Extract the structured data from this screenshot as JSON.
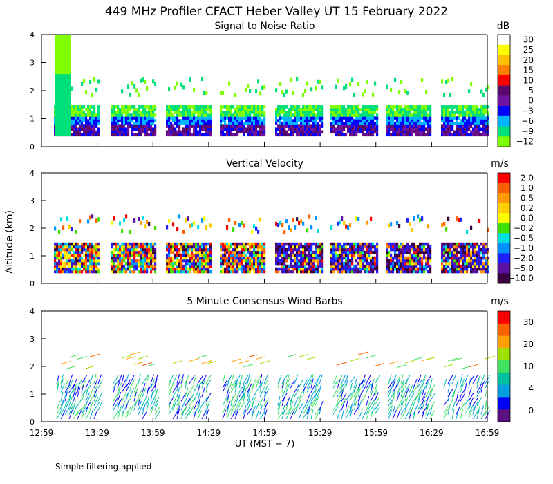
{
  "title": "449 MHz Profiler CFACT Heber Valley UT 15 February 2022",
  "ylabel": "Altitude (km)",
  "xlabel": "UT  (MST − 7)",
  "footer": "Simple filtering applied",
  "chart_data": [
    {
      "type": "heatmap",
      "title": "Signal to Noise Ratio",
      "unit": "dB",
      "yticks": [
        "0",
        "1",
        "2",
        "3",
        "4"
      ],
      "ylim": [
        0,
        4
      ],
      "colorbar_labels": [
        "30",
        "25",
        "20",
        "15",
        "10",
        "5",
        "0",
        "−3",
        "−6",
        "−9",
        "−12"
      ],
      "colorbar_colors": [
        "#ffffff",
        "#ffff00",
        "#ffc000",
        "#ff8000",
        "#ff0000",
        "#5a0a6e",
        "#6e14a0",
        "#0000ff",
        "#00b4ff",
        "#00e07a",
        "#80ff00"
      ]
    },
    {
      "type": "heatmap",
      "title": "Vertical Velocity",
      "unit": "m/s",
      "yticks": [
        "0",
        "1",
        "2",
        "3",
        "4"
      ],
      "ylim": [
        0,
        4
      ],
      "colorbar_labels": [
        "2.0",
        "1.0",
        "0.5",
        "0.2",
        "0.0",
        "−0.2",
        "−0.5",
        "−1.0",
        "−2.0",
        "−5.0",
        "−10.0"
      ],
      "colorbar_colors": [
        "#ff0000",
        "#ff6000",
        "#ff9a00",
        "#ffd000",
        "#ffff00",
        "#40e000",
        "#00e0e0",
        "#0090ff",
        "#2020ff",
        "#5a10a0",
        "#3a0040"
      ]
    },
    {
      "type": "scatter",
      "title": "5 Minute Consensus Wind Barbs",
      "unit": "m/s",
      "yticks": [
        "0",
        "1",
        "2",
        "3",
        "4"
      ],
      "ylim": [
        0,
        4
      ],
      "colorbar_labels": [
        "30",
        "20",
        "10",
        "4",
        "0"
      ],
      "colorbar_colors": [
        "#ff0000",
        "#ff6000",
        "#ffa000",
        "#a0e000",
        "#40e060",
        "#00c0a0",
        "#00a0e0",
        "#0000ff",
        "#5a1080"
      ]
    }
  ],
  "x_ticks": [
    "12:59",
    "13:29",
    "13:59",
    "14:29",
    "14:59",
    "15:29",
    "15:59",
    "16:29",
    "16:59"
  ]
}
